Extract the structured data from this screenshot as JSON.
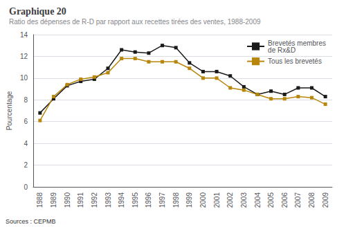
{
  "chart_data": {
    "type": "line",
    "title": "Graphique 20",
    "subtitle": "Ratio des dépenses de R-D par rapport aux recettes tirées des ventes, 1988-2009",
    "source": "Sources : CEPMB",
    "y_label": "Pourcentage",
    "categories": [
      "1988",
      "1989",
      "1990",
      "1991",
      "1992",
      "1993",
      "1994",
      "1995",
      "1996",
      "1997",
      "1998",
      "1999",
      "2000",
      "2001",
      "2002",
      "2003",
      "2004",
      "2005",
      "2006",
      "2007",
      "2008",
      "2009"
    ],
    "series": [
      {
        "name": "Brevetés membres\nde Rx&D",
        "color": "#1a1a1a",
        "marker": "square",
        "values": [
          6.8,
          8.1,
          9.3,
          9.7,
          9.9,
          10.9,
          12.6,
          12.4,
          12.3,
          13.0,
          12.8,
          11.4,
          10.6,
          10.6,
          10.2,
          9.2,
          8.5,
          8.8,
          8.5,
          9.1,
          9.1,
          8.3
        ]
      },
      {
        "name": "Tous les brevetés",
        "color": "#b8860b",
        "marker": "square",
        "values": [
          6.1,
          8.3,
          9.4,
          9.9,
          10.1,
          10.5,
          11.8,
          11.8,
          11.5,
          11.5,
          11.5,
          10.9,
          10.0,
          10.0,
          9.1,
          8.9,
          8.5,
          8.1,
          8.1,
          8.3,
          8.2,
          7.6
        ]
      }
    ],
    "ylim": [
      0,
      14
    ],
    "yticks": [
      0,
      2,
      4,
      6,
      8,
      10,
      12,
      14
    ],
    "grid": true,
    "legend": "upper right"
  }
}
